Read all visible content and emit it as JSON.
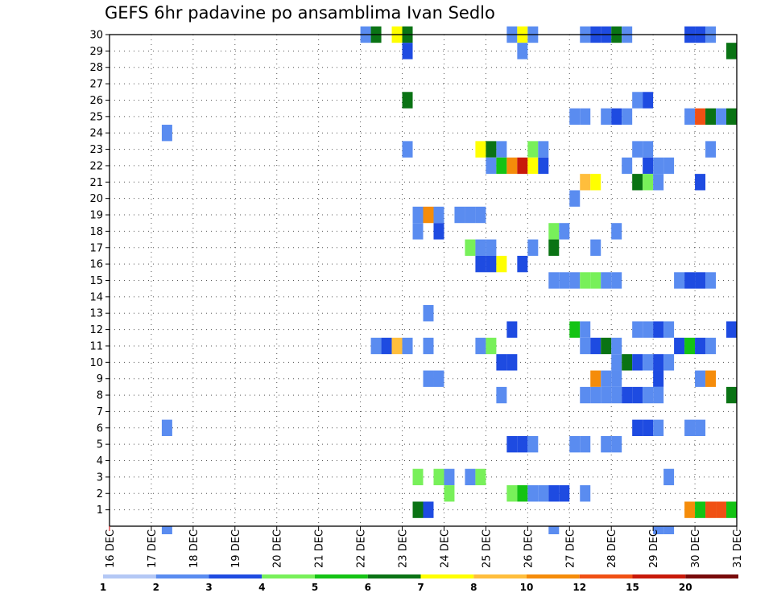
{
  "chart_data": {
    "type": "heatmap",
    "title": "GEFS 6hr padavine po ansamblima Ivan Sedlo",
    "xlabel": "",
    "ylabel": "",
    "x_tick_labels": [
      "16 DEC",
      "17 DEC",
      "18 DEC",
      "19 DEC",
      "20 DEC",
      "21 DEC",
      "22 DEC",
      "23 DEC",
      "24 DEC",
      "25 DEC",
      "26 DEC",
      "27 DEC",
      "28 DEC",
      "29 DEC",
      "30 DEC",
      "31 DEC"
    ],
    "y_tick_labels": [
      "1",
      "2",
      "3",
      "4",
      "5",
      "6",
      "7",
      "8",
      "9",
      "10",
      "11",
      "12",
      "13",
      "14",
      "15",
      "16",
      "17",
      "18",
      "19",
      "20",
      "21",
      "22",
      "23",
      "24",
      "25",
      "26",
      "27",
      "28",
      "29",
      "30"
    ],
    "x_unit": "6-hour step from 16 DEC 00Z",
    "xlim": [
      0,
      60
    ],
    "ylim": [
      0,
      30
    ],
    "grid": "dotted",
    "colorbar": {
      "labels": [
        "1",
        "2",
        "3",
        "4",
        "5",
        "6",
        "7",
        "8",
        "10",
        "12",
        "15",
        "20"
      ],
      "colors": [
        "#b4c8f5",
        "#5a8cf0",
        "#1e4be1",
        "#78f05a",
        "#14c314",
        "#0a7314",
        "#ffff00",
        "#ffbe3c",
        "#f58c0a",
        "#f05014",
        "#c8190a",
        "#780a0a"
      ]
    },
    "cells": [
      [
        30,
        24.5,
        1
      ],
      [
        30,
        25.5,
        5
      ],
      [
        30,
        27.5,
        6
      ],
      [
        30,
        28.5,
        5
      ],
      [
        30,
        38.5,
        1
      ],
      [
        30,
        39.5,
        6
      ],
      [
        30,
        40.5,
        1
      ],
      [
        30,
        45.5,
        1
      ],
      [
        30,
        46.5,
        2
      ],
      [
        30,
        47.5,
        2
      ],
      [
        30,
        48.5,
        5
      ],
      [
        30,
        49.5,
        1
      ],
      [
        30,
        55.5,
        2
      ],
      [
        30,
        56.5,
        2
      ],
      [
        30,
        57.5,
        1
      ],
      [
        29,
        28.5,
        2
      ],
      [
        29,
        39.5,
        1
      ],
      [
        29,
        59.5,
        5
      ],
      [
        26,
        28.5,
        5
      ],
      [
        26,
        50.5,
        1
      ],
      [
        26,
        51.5,
        2
      ],
      [
        25,
        44.5,
        1
      ],
      [
        25,
        45.5,
        1
      ],
      [
        25,
        47.5,
        1
      ],
      [
        25,
        48.5,
        2
      ],
      [
        25,
        49.5,
        1
      ],
      [
        25,
        55.5,
        1
      ],
      [
        25,
        56.5,
        9
      ],
      [
        25,
        57.5,
        5
      ],
      [
        25,
        58.5,
        1
      ],
      [
        25,
        59.5,
        5
      ],
      [
        24,
        5.5,
        1
      ],
      [
        23,
        28.5,
        1
      ],
      [
        23,
        35.5,
        6
      ],
      [
        23,
        36.5,
        5
      ],
      [
        23,
        37.5,
        1
      ],
      [
        23,
        40.5,
        3
      ],
      [
        23,
        41.5,
        1
      ],
      [
        23,
        50.5,
        1
      ],
      [
        23,
        51.5,
        1
      ],
      [
        23,
        57.5,
        1
      ],
      [
        22,
        36.5,
        1
      ],
      [
        22,
        37.5,
        4
      ],
      [
        22,
        38.5,
        8
      ],
      [
        22,
        39.5,
        10
      ],
      [
        22,
        40.5,
        6
      ],
      [
        22,
        41.5,
        2
      ],
      [
        22,
        49.5,
        1
      ],
      [
        22,
        51.5,
        2
      ],
      [
        22,
        52.5,
        1
      ],
      [
        22,
        53.5,
        1
      ],
      [
        21,
        45.5,
        7
      ],
      [
        21,
        46.5,
        6
      ],
      [
        21,
        50.5,
        5
      ],
      [
        21,
        51.5,
        3
      ],
      [
        21,
        52.5,
        1
      ],
      [
        21,
        56.5,
        2
      ],
      [
        20,
        44.5,
        1
      ],
      [
        19,
        29.5,
        1
      ],
      [
        19,
        30.5,
        8
      ],
      [
        19,
        31.5,
        1
      ],
      [
        19,
        33.5,
        1
      ],
      [
        19,
        34.5,
        1
      ],
      [
        19,
        35.5,
        1
      ],
      [
        18,
        29.5,
        1
      ],
      [
        18,
        31.5,
        2
      ],
      [
        18,
        42.5,
        3
      ],
      [
        18,
        43.5,
        1
      ],
      [
        18,
        48.5,
        1
      ],
      [
        17,
        34.5,
        3
      ],
      [
        17,
        35.5,
        1
      ],
      [
        17,
        36.5,
        1
      ],
      [
        17,
        40.5,
        1
      ],
      [
        17,
        42.5,
        5
      ],
      [
        17,
        46.5,
        1
      ],
      [
        16,
        35.5,
        2
      ],
      [
        16,
        36.5,
        2
      ],
      [
        16,
        37.5,
        6
      ],
      [
        16,
        39.5,
        2
      ],
      [
        15,
        42.5,
        1
      ],
      [
        15,
        43.5,
        1
      ],
      [
        15,
        44.5,
        1
      ],
      [
        15,
        45.5,
        3
      ],
      [
        15,
        46.5,
        3
      ],
      [
        15,
        47.5,
        1
      ],
      [
        15,
        48.5,
        1
      ],
      [
        15,
        54.5,
        1
      ],
      [
        15,
        55.5,
        2
      ],
      [
        15,
        56.5,
        2
      ],
      [
        15,
        57.5,
        1
      ],
      [
        13,
        30.5,
        1
      ],
      [
        12,
        38.5,
        2
      ],
      [
        12,
        44.5,
        4
      ],
      [
        12,
        45.5,
        1
      ],
      [
        12,
        50.5,
        1
      ],
      [
        12,
        51.5,
        1
      ],
      [
        12,
        52.5,
        2
      ],
      [
        12,
        53.5,
        1
      ],
      [
        12,
        59.5,
        2
      ],
      [
        11,
        25.5,
        1
      ],
      [
        11,
        26.5,
        2
      ],
      [
        11,
        27.5,
        7
      ],
      [
        11,
        28.5,
        1
      ],
      [
        11,
        30.5,
        1
      ],
      [
        11,
        35.5,
        1
      ],
      [
        11,
        36.5,
        3
      ],
      [
        11,
        45.5,
        1
      ],
      [
        11,
        46.5,
        2
      ],
      [
        11,
        47.5,
        5
      ],
      [
        11,
        48.5,
        1
      ],
      [
        11,
        54.5,
        2
      ],
      [
        11,
        55.5,
        4
      ],
      [
        11,
        56.5,
        2
      ],
      [
        11,
        57.5,
        1
      ],
      [
        10,
        37.5,
        2
      ],
      [
        10,
        38.5,
        2
      ],
      [
        10,
        48.5,
        1
      ],
      [
        10,
        49.5,
        5
      ],
      [
        10,
        50.5,
        2
      ],
      [
        10,
        51.5,
        1
      ],
      [
        10,
        52.5,
        2
      ],
      [
        10,
        53.5,
        1
      ],
      [
        9,
        30.5,
        1
      ],
      [
        9,
        31.5,
        1
      ],
      [
        9,
        46.5,
        8
      ],
      [
        9,
        47.5,
        1
      ],
      [
        9,
        48.5,
        1
      ],
      [
        9,
        52.5,
        2
      ],
      [
        9,
        56.5,
        1
      ],
      [
        9,
        57.5,
        8
      ],
      [
        8,
        37.5,
        1
      ],
      [
        8,
        45.5,
        1
      ],
      [
        8,
        46.5,
        1
      ],
      [
        8,
        47.5,
        1
      ],
      [
        8,
        48.5,
        1
      ],
      [
        8,
        49.5,
        2
      ],
      [
        8,
        50.5,
        2
      ],
      [
        8,
        51.5,
        1
      ],
      [
        8,
        52.5,
        1
      ],
      [
        8,
        59.5,
        5
      ],
      [
        6,
        5.5,
        1
      ],
      [
        6,
        50.5,
        2
      ],
      [
        6,
        51.5,
        2
      ],
      [
        6,
        52.5,
        1
      ],
      [
        6,
        55.5,
        1
      ],
      [
        6,
        56.5,
        1
      ],
      [
        5,
        38.5,
        2
      ],
      [
        5,
        39.5,
        2
      ],
      [
        5,
        40.5,
        1
      ],
      [
        5,
        44.5,
        1
      ],
      [
        5,
        45.5,
        1
      ],
      [
        5,
        47.5,
        1
      ],
      [
        5,
        48.5,
        1
      ],
      [
        3,
        29.5,
        3
      ],
      [
        3,
        31.5,
        3
      ],
      [
        3,
        32.5,
        1
      ],
      [
        3,
        34.5,
        1
      ],
      [
        3,
        35.5,
        3
      ],
      [
        3,
        53.5,
        1
      ],
      [
        2,
        32.5,
        3
      ],
      [
        2,
        38.5,
        3
      ],
      [
        2,
        39.5,
        4
      ],
      [
        2,
        40.5,
        1
      ],
      [
        2,
        41.5,
        1
      ],
      [
        2,
        42.5,
        2
      ],
      [
        2,
        43.5,
        2
      ],
      [
        2,
        45.5,
        1
      ],
      [
        1,
        29.5,
        5
      ],
      [
        1,
        30.5,
        2
      ],
      [
        1,
        55.5,
        8
      ],
      [
        1,
        56.5,
        4
      ],
      [
        1,
        57.5,
        9
      ],
      [
        1,
        58.5,
        9
      ],
      [
        1,
        59.5,
        4
      ],
      [
        0,
        5.5,
        1
      ],
      [
        0,
        42.5,
        1
      ],
      [
        0,
        52.5,
        1
      ],
      [
        0,
        53.5,
        1
      ]
    ]
  }
}
